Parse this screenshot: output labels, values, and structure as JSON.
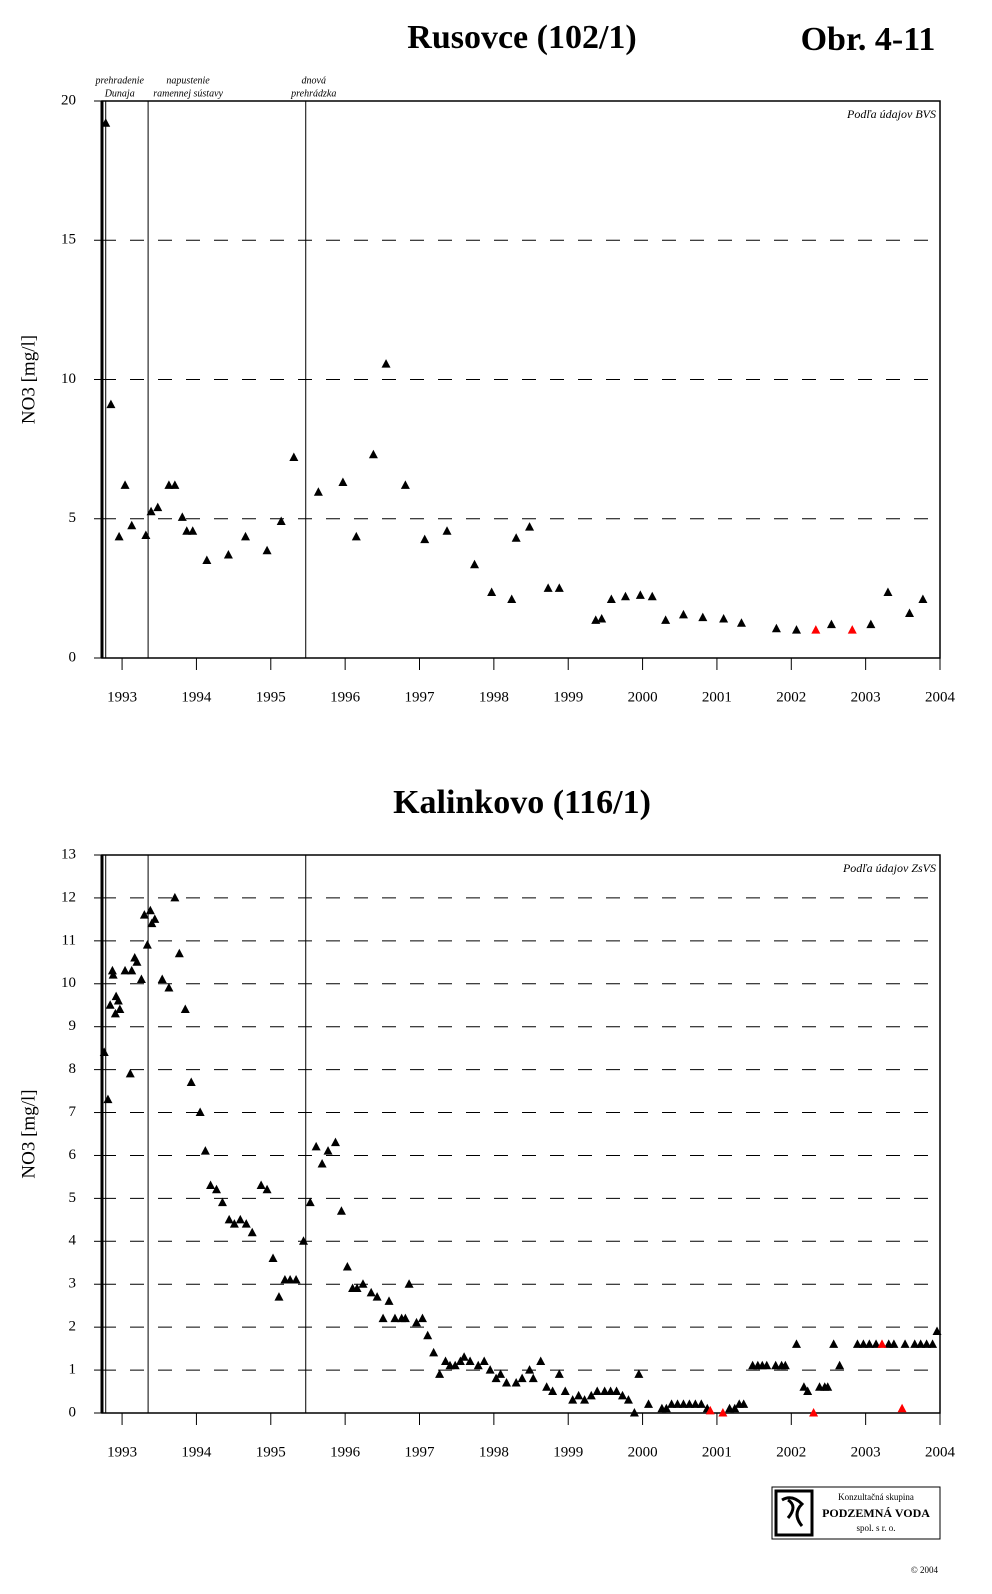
{
  "figure_label": "Obr. 4-11",
  "chart_data": [
    {
      "type": "scatter",
      "title": "Rusovce (102/1)",
      "y_label": "NO3 [mg/l]",
      "note": "Podľa údajov BVS",
      "xlim": [
        1992.73,
        2004
      ],
      "xticks": [
        1993,
        1994,
        1995,
        1996,
        1997,
        1998,
        1999,
        2000,
        2001,
        2002,
        2003,
        2004
      ],
      "ylim": [
        0,
        20
      ],
      "yticks": [
        0,
        5,
        10,
        15,
        20
      ],
      "grid": true,
      "events": [
        {
          "x": 1992.78,
          "label": [
            "prehradenie",
            "Dunaja"
          ]
        },
        {
          "x": 1993.35,
          "label": [
            "napustenie",
            "ramennej sústavy"
          ]
        },
        {
          "x": 1995.47,
          "label": [
            "dnová",
            "prehrádzka"
          ]
        }
      ],
      "series": [
        {
          "color": "#000000",
          "x": [
            1992.78,
            1992.85,
            1992.96,
            1993.04,
            1993.13,
            1993.32,
            1993.39,
            1993.48,
            1993.63,
            1993.71,
            1993.81,
            1993.87,
            1993.95,
            1994.14,
            1994.43,
            1994.66,
            1994.95,
            1995.14,
            1995.31,
            1995.64,
            1995.97,
            1996.15,
            1996.38,
            1996.55,
            1996.81,
            1997.07,
            1997.37,
            1997.74,
            1997.97,
            1998.24,
            1998.3,
            1998.48,
            1998.73,
            1998.88,
            1999.37,
            1999.45,
            1999.58,
            1999.77,
            1999.97,
            2000.13,
            2000.31,
            2000.55,
            2000.81,
            2001.09,
            2001.33,
            2001.8,
            2002.07,
            2002.54,
            2003.07,
            2003.3,
            2003.59,
            2003.77
          ],
          "values": [
            19.2,
            9.1,
            4.35,
            6.2,
            4.75,
            4.4,
            5.25,
            5.4,
            6.2,
            6.2,
            5.05,
            4.55,
            4.55,
            3.5,
            3.7,
            4.35,
            3.85,
            4.9,
            7.2,
            5.95,
            6.3,
            4.35,
            7.3,
            10.55,
            6.2,
            4.25,
            4.55,
            3.35,
            2.35,
            2.1,
            4.3,
            4.7,
            2.5,
            2.5,
            1.35,
            1.4,
            2.1,
            2.2,
            2.25,
            2.2,
            1.35,
            1.55,
            1.45,
            1.4,
            1.25,
            1.05,
            1.0,
            1.2,
            1.2,
            2.35,
            1.6,
            2.1
          ]
        },
        {
          "color": "#ff0000",
          "x": [
            2002.33,
            2002.82
          ],
          "values": [
            1.0,
            1.0
          ]
        }
      ]
    },
    {
      "type": "scatter",
      "title": "Kalinkovo (116/1)",
      "y_label": "NO3 [mg/l]",
      "note": "Podľa údajov ZsVS",
      "xlim": [
        1992.73,
        2004
      ],
      "xticks": [
        1993,
        1994,
        1995,
        1996,
        1997,
        1998,
        1999,
        2000,
        2001,
        2002,
        2003,
        2004
      ],
      "ylim": [
        0,
        13
      ],
      "yticks": [
        0,
        1,
        2,
        3,
        4,
        5,
        6,
        7,
        8,
        9,
        10,
        11,
        12,
        13
      ],
      "grid": true,
      "events": [
        {
          "x": 1992.78
        },
        {
          "x": 1993.35
        },
        {
          "x": 1995.47
        }
      ],
      "series": [
        {
          "color": "#000000",
          "x": [
            1992.76,
            1992.81,
            1992.84,
            1992.87,
            1992.88,
            1992.91,
            1992.92,
            1992.95,
            1992.97,
            1993.04,
            1993.11,
            1993.13,
            1993.17,
            1993.2,
            1993.26,
            1993.3,
            1993.34,
            1993.38,
            1993.4,
            1993.44,
            1993.54,
            1993.63,
            1993.71,
            1993.77,
            1993.85,
            1993.93,
            1994.05,
            1994.12,
            1994.19,
            1994.27,
            1994.35,
            1994.44,
            1994.51,
            1994.59,
            1994.67,
            1994.75,
            1994.87,
            1994.95,
            1995.03,
            1995.11,
            1995.19,
            1995.26,
            1995.34,
            1995.44,
            1995.53,
            1995.61,
            1995.69,
            1995.77,
            1995.87,
            1995.95,
            1996.03,
            1996.1,
            1996.16,
            1996.24,
            1996.35,
            1996.43,
            1996.51,
            1996.59,
            1996.67,
            1996.76,
            1996.81,
            1996.86,
            1996.96,
            1997.04,
            1997.11,
            1997.19,
            1997.27,
            1997.35,
            1997.41,
            1997.48,
            1997.55,
            1997.6,
            1997.68,
            1997.79,
            1997.87,
            1997.95,
            1998.03,
            1998.09,
            1998.17,
            1998.3,
            1998.38,
            1998.48,
            1998.53,
            1998.63,
            1998.71,
            1998.79,
            1998.88,
            1998.96,
            1999.06,
            1999.14,
            1999.22,
            1999.31,
            1999.39,
            1999.49,
            1999.57,
            1999.65,
            1999.73,
            1999.81,
            1999.89,
            1999.95,
            2000.08,
            2000.26,
            2000.32,
            2000.39,
            2000.47,
            2000.55,
            2000.63,
            2000.71,
            2000.79,
            2000.87,
            2001.17,
            2001.24,
            2001.3,
            2001.36,
            2001.48,
            2001.55,
            2001.61,
            2001.67,
            2001.79,
            2001.87,
            2001.92,
            2002.07,
            2002.17,
            2002.22,
            2002.38,
            2002.45,
            2002.49,
            2002.57,
            2002.65,
            2002.89,
            2002.97,
            2003.05,
            2003.14,
            2003.31,
            2003.38,
            2003.53,
            2003.66,
            2003.74,
            2003.82,
            2003.9,
            2003.96
          ],
          "values": [
            8.4,
            7.3,
            9.5,
            10.3,
            10.2,
            9.3,
            9.7,
            9.6,
            9.4,
            10.3,
            7.9,
            10.3,
            10.6,
            10.5,
            10.1,
            11.6,
            10.9,
            11.7,
            11.4,
            11.5,
            10.1,
            9.9,
            12.0,
            10.7,
            9.4,
            7.7,
            7.0,
            6.1,
            5.3,
            5.2,
            4.9,
            4.5,
            4.4,
            4.5,
            4.4,
            4.2,
            5.3,
            5.2,
            3.6,
            2.7,
            3.1,
            3.1,
            3.1,
            4.0,
            4.9,
            6.2,
            5.8,
            6.1,
            6.3,
            4.7,
            3.4,
            2.9,
            2.9,
            3.0,
            2.8,
            2.7,
            2.2,
            2.6,
            2.2,
            2.2,
            2.2,
            3.0,
            2.1,
            2.2,
            1.8,
            1.4,
            0.9,
            1.2,
            1.1,
            1.1,
            1.2,
            1.3,
            1.2,
            1.1,
            1.2,
            1.0,
            0.8,
            0.9,
            0.7,
            0.7,
            0.8,
            1.0,
            0.8,
            1.2,
            0.6,
            0.5,
            0.9,
            0.5,
            0.3,
            0.4,
            0.3,
            0.4,
            0.5,
            0.5,
            0.5,
            0.5,
            0.4,
            0.3,
            0.0,
            0.9,
            0.2,
            0.1,
            0.1,
            0.2,
            0.2,
            0.2,
            0.2,
            0.2,
            0.2,
            0.1,
            0.1,
            0.1,
            0.2,
            0.2,
            1.1,
            1.1,
            1.1,
            1.1,
            1.1,
            1.1,
            1.1,
            1.6,
            0.6,
            0.5,
            0.6,
            0.6,
            0.6,
            1.6,
            1.1,
            1.6,
            1.6,
            1.6,
            1.6,
            1.6,
            1.6,
            1.6,
            1.6,
            1.6,
            1.6,
            1.6,
            1.9
          ]
        },
        {
          "color": "#ff0000",
          "x": [
            2000.91,
            2001.08,
            2002.3,
            2003.22,
            2003.49
          ],
          "values": [
            0.05,
            0.0,
            0.0,
            1.6,
            0.1
          ]
        }
      ]
    }
  ],
  "logo": {
    "line1": "Konzultačná skupina",
    "line2": "PODZEMNÁ VODA",
    "line3": "spol. s r. o.",
    "copyright": "© 2004"
  }
}
